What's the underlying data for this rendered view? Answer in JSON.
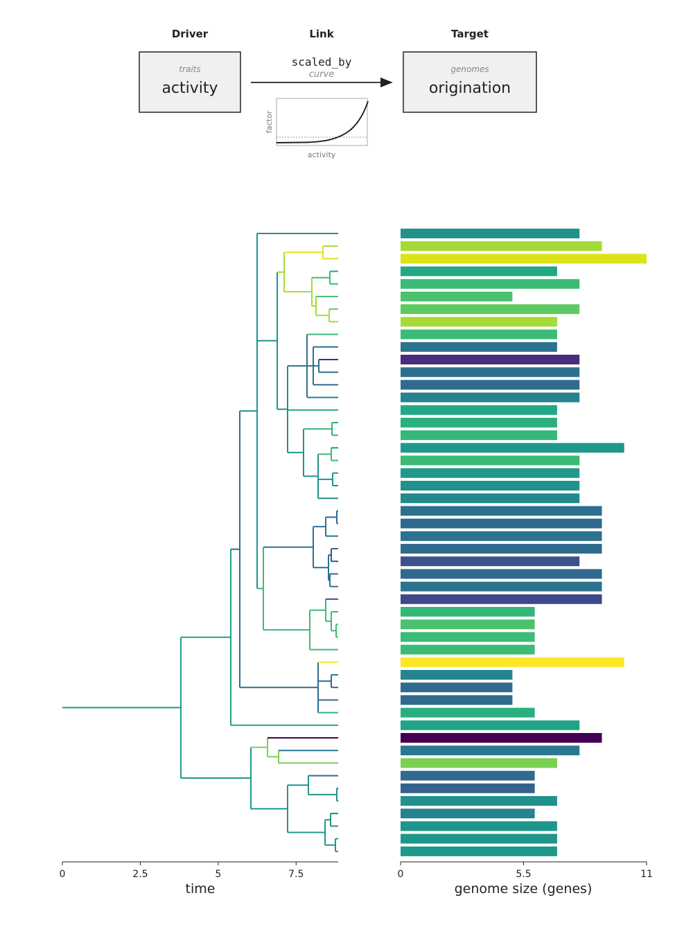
{
  "header": {
    "driver_heading": "Driver",
    "link_heading": "Link",
    "target_heading": "Target",
    "driver_sub": "traits",
    "driver_main": "activity",
    "link_main": "scaled_by",
    "link_sub": "curve",
    "target_sub": "genomes",
    "target_main": "origination",
    "mini_ylabel": "factor",
    "mini_xlabel": "activity"
  },
  "chart_data": {
    "type": "bar",
    "tree": {
      "xlabel": "time",
      "xticks": [
        0,
        2.5,
        5,
        7.5
      ],
      "xtick_labels": [
        "0",
        "2.5",
        "5",
        "7.5"
      ],
      "xlim": [
        0,
        8.85
      ]
    },
    "bars": {
      "xlabel": "genome size (genes)",
      "xticks": [
        0,
        5.5,
        11
      ],
      "xtick_labels": [
        "0",
        "5.5",
        "11"
      ],
      "xlim": [
        0,
        11
      ],
      "values": [
        8,
        9,
        11,
        7,
        8,
        5,
        8,
        7,
        7,
        7,
        8,
        8,
        8,
        8,
        7,
        7,
        7,
        10,
        8,
        8,
        8,
        8,
        9,
        9,
        9,
        9,
        8,
        9,
        9,
        9,
        6,
        6,
        6,
        6,
        10,
        5,
        5,
        5,
        6,
        8,
        9,
        8,
        7,
        6,
        6,
        7,
        6,
        7,
        7,
        7
      ],
      "colors": [
        "#21918c",
        "#a5db36",
        "#dde318",
        "#22a884",
        "#3bbb75",
        "#4ac16d",
        "#5ec962",
        "#a5db36",
        "#3bbb75",
        "#2c728e",
        "#472d7b",
        "#2d708e",
        "#2f6b8e",
        "#26828e",
        "#22a884",
        "#2ab07f",
        "#35b779",
        "#1f988b",
        "#3bbb75",
        "#1f9a8a",
        "#20928c",
        "#23898e",
        "#2d708e",
        "#30698e",
        "#2c728e",
        "#2f6b8e",
        "#3b528b",
        "#31688e",
        "#2c728e",
        "#3e4989",
        "#35b779",
        "#4ac16d",
        "#3bbb75",
        "#3bbb75",
        "#fde725",
        "#25858e",
        "#2f6b8e",
        "#2f6b8e",
        "#2ab07f",
        "#20a386",
        "#440154",
        "#2a788e",
        "#7ad151",
        "#306a8e",
        "#33638d",
        "#21918c",
        "#26828e",
        "#1f968b",
        "#1f968b",
        "#1f978b"
      ]
    }
  }
}
